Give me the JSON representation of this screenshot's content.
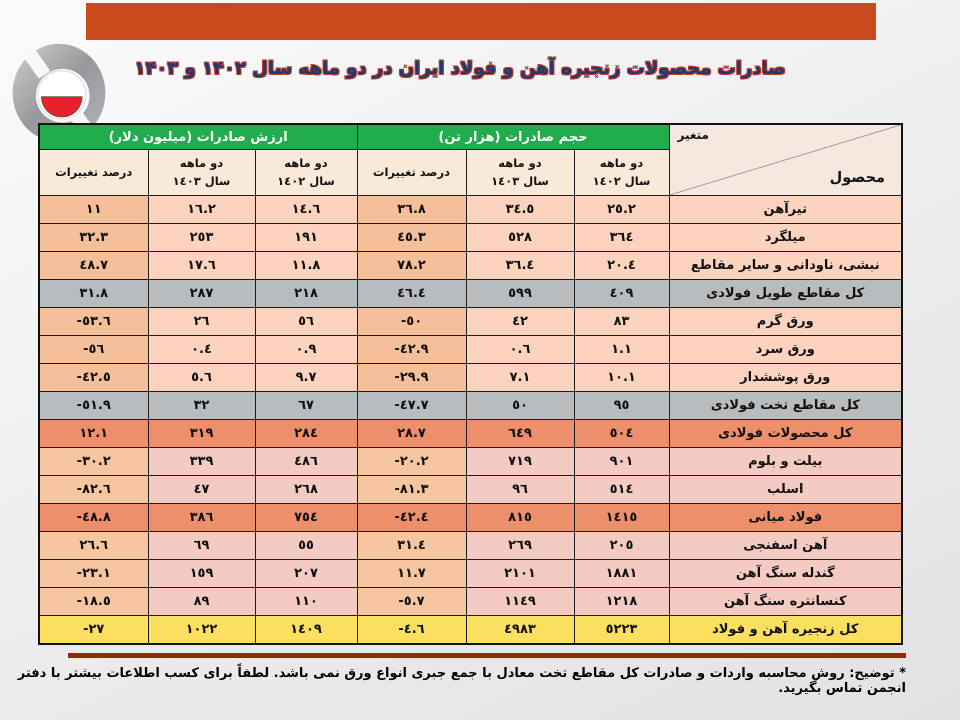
{
  "header": {
    "bar_color": "#C94A1D",
    "title": "صادرات محصولات زنجیره آهن و فولاد ایران در دو ماهه سال ۱۴۰۲ و ۱۴۰۳"
  },
  "logo": {
    "name": "iran-steel-producers-association-logo",
    "colors": {
      "gray": "#A6A8AB",
      "red": "#E8222D"
    }
  },
  "table": {
    "corner": {
      "top_label": "متغیر",
      "bottom_label": "محصول"
    },
    "group_volume": "حجم صادرات (هزار تن)",
    "group_value": "ارزش صادرات (میلیون دلار)",
    "subheaders": {
      "vol_1402": "دو ماهه\nسال ١٤٠٢",
      "vol_1403": "دو ماهه\nسال ١٤٠٣",
      "vol_change": "درصد تغییرات",
      "val_1402": "دو ماهه\nسال ١٤٠٢",
      "val_1403": "دو ماهه\nسال ١٤٠٣",
      "val_change": "درصد تغییرات"
    },
    "row_colors": {
      "normal": "#FBD3BE",
      "normal_pct": "#F5BF99",
      "pink": "#F3CBC2",
      "pink_pct": "#F5C6A0",
      "gray": "#B9BCBF",
      "coral": "#EE8F6C",
      "yellow": "#FBDF5E",
      "header_green": "#21AC4D",
      "subheader_cream": "#F9E9D9"
    },
    "rows": [
      {
        "product": "تیرآهن",
        "values": [
          "٢٥.٢",
          "٣٤.٥",
          "٣٦.٨",
          "١٤.٦",
          "١٦.٢",
          "١١"
        ],
        "style": "normal"
      },
      {
        "product": "میلگرد",
        "values": [
          "٣٦٤",
          "٥٢٨",
          "٤٥.٣",
          "١٩١",
          "٢٥٣",
          "٣٢.٣"
        ],
        "style": "normal"
      },
      {
        "product": "نبشی، ناودانی و سایر مقاطع",
        "values": [
          "٢٠.٤",
          "٣٦.٤",
          "٧٨.٢",
          "١١.٨",
          "١٧.٦",
          "٤٨.٧"
        ],
        "style": "normal"
      },
      {
        "product": "کل مقاطع طویل فولادی",
        "values": [
          "٤٠٩",
          "٥٩٩",
          "٤٦.٤",
          "٢١٨",
          "٢٨٧",
          "٣١.٨"
        ],
        "style": "gray"
      },
      {
        "product": "ورق گرم",
        "values": [
          "٨٣",
          "٤٢",
          "-٥٠",
          "٥٦",
          "٢٦",
          "-٥٣.٦"
        ],
        "style": "normal"
      },
      {
        "product": "ورق سرد",
        "values": [
          "١.١",
          "٠.٦",
          "-٤٢.٩",
          "٠.٩",
          "٠.٤",
          "-٥٦"
        ],
        "style": "normal"
      },
      {
        "product": "ورق پوششدار",
        "values": [
          "١٠.١",
          "٧.١",
          "-٢٩.٩",
          "٩.٧",
          "٥.٦",
          "-٤٢.٥"
        ],
        "style": "normal"
      },
      {
        "product": "کل مقاطع تخت فولادی",
        "values": [
          "٩٥",
          "٥٠",
          "-٤٧.٧",
          "٦٧",
          "٣٢",
          "-٥١.٩"
        ],
        "style": "gray"
      },
      {
        "product": "کل محصولات فولادی",
        "values": [
          "٥٠٤",
          "٦٤٩",
          "٢٨.٧",
          "٢٨٤",
          "٣١٩",
          "١٢.١"
        ],
        "style": "coral"
      },
      {
        "product": "بیلت و بلوم",
        "values": [
          "٩٠١",
          "٧١٩",
          "-٢٠.٢",
          "٤٨٦",
          "٣٣٩",
          "-٣٠.٢"
        ],
        "style": "pink"
      },
      {
        "product": "اسلب",
        "values": [
          "٥١٤",
          "٩٦",
          "-٨١.٣",
          "٢٦٨",
          "٤٧",
          "-٨٢.٦"
        ],
        "style": "pink"
      },
      {
        "product": "فولاد میانی",
        "values": [
          "١٤١٥",
          "٨١٥",
          "-٤٢.٤",
          "٧٥٤",
          "٣٨٦",
          "-٤٨.٨"
        ],
        "style": "coral"
      },
      {
        "product": "آهن اسفنجی",
        "values": [
          "٢٠٥",
          "٢٦٩",
          "٣١.٤",
          "٥٥",
          "٦٩",
          "٢٦.٦"
        ],
        "style": "pink"
      },
      {
        "product": "گندله سنگ آهن",
        "values": [
          "١٨٨١",
          "٢١٠١",
          "١١.٧",
          "٢٠٧",
          "١٥٩",
          "-٢٣.١"
        ],
        "style": "pink"
      },
      {
        "product": "کنسانتره سنگ آهن",
        "values": [
          "١٢١٨",
          "١١٤٩",
          "-٥.٧",
          "١١٠",
          "٨٩",
          "-١٨.٥"
        ],
        "style": "pink"
      },
      {
        "product": "کل زنجیره آهن و فولاد",
        "values": [
          "٥٢٢٣",
          "٤٩٨٣",
          "-٤.٦",
          "١٤٠٩",
          "١٠٢٢",
          "-٢٧"
        ],
        "style": "yellow"
      }
    ]
  },
  "footnote": "* توضیح: روش محاسبه واردات و صادرات کل مقاطع تخت معادل با جمع جبری انواع ورق نمی باشد. لطفاً برای کسب اطلاعات بیشتر با دفتر انجمن تماس بگیرید."
}
